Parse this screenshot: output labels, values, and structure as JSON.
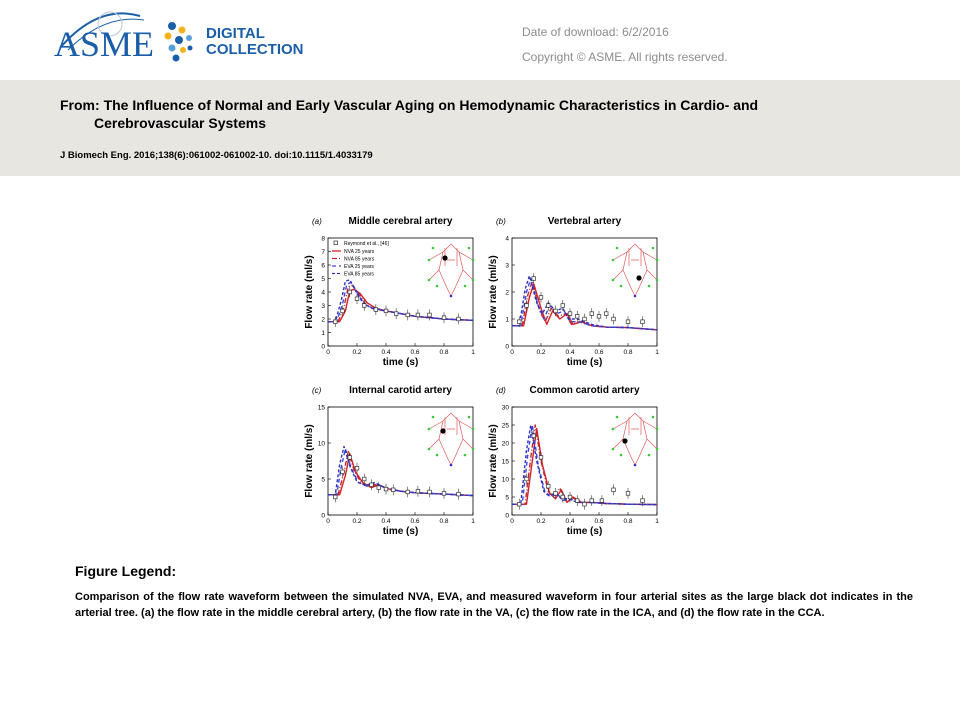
{
  "header": {
    "logo_main": "ASME",
    "logo_line1": "DIGITAL",
    "logo_line2": "COLLECTION",
    "download_label": "Date of download:",
    "download_date": "6/2/2016",
    "copyright": "Copyright © ASME. All rights reserved."
  },
  "article": {
    "from_label": "From:",
    "title_line1": "The Influence of Normal and Early Vascular Aging on Hemodynamic Characteristics in Cardio- and",
    "title_line2": "Cerebrovascular Systems",
    "citation": "J Biomech Eng. 2016;138(6):061002-061002-10. doi:10.1115/1.4033179"
  },
  "legend": {
    "heading": "Figure Legend:",
    "text": "Comparison of the flow rate waveform between the simulated NVA, EVA, and measured waveform in four arterial sites as the large black dot indicates in the arterial tree. (a) the flow rate in the middle cerebral artery, (b) the flow rate in the VA, (c) the flow rate in the ICA, and (d) the flow rate in the CCA."
  },
  "colors": {
    "nva25": "#d61f26",
    "nva85": "#c0282d",
    "eva25": "#3d4ad8",
    "eva85": "#3030c0",
    "band": "#e8e6e1"
  },
  "chart_data": [
    {
      "type": "line",
      "panel": "(a)",
      "title": "Middle cerebral artery",
      "xlabel": "time (s)",
      "ylabel": "Flow rate (ml/s)",
      "xlim": [
        0,
        1
      ],
      "ylim": [
        0,
        8
      ],
      "xticks": [
        "0",
        "0.2",
        "0.4",
        "0.6",
        "0.8",
        "1"
      ],
      "yticks": [
        "0",
        "1",
        "2",
        "3",
        "4",
        "5",
        "6",
        "7",
        "8"
      ],
      "legend": [
        "Reymond et al., [46]",
        "NVA 25 years",
        "NVA 85 years",
        "EVA 25 years",
        "EVA 85 years"
      ],
      "series": [
        {
          "name": "NVA 25 years",
          "x": [
            0,
            0.08,
            0.12,
            0.15,
            0.18,
            0.22,
            0.27,
            0.33,
            0.4,
            0.5,
            0.6,
            0.7,
            0.8,
            0.9,
            1
          ],
          "y": [
            1.8,
            1.8,
            2.6,
            4.1,
            4.2,
            3.9,
            3.2,
            2.8,
            2.6,
            2.4,
            2.2,
            2.1,
            2.0,
            1.95,
            1.9
          ]
        },
        {
          "name": "NVA 85 years",
          "x": [
            0,
            0.07,
            0.11,
            0.14,
            0.17,
            0.21,
            0.26,
            0.32,
            0.4,
            0.5,
            0.6,
            0.7,
            0.8,
            0.9,
            1
          ],
          "y": [
            1.8,
            1.8,
            2.9,
            4.4,
            4.5,
            3.9,
            3.1,
            2.7,
            2.6,
            2.4,
            2.2,
            2.1,
            2.0,
            1.95,
            1.9
          ]
        },
        {
          "name": "EVA 25 years",
          "x": [
            0,
            0.06,
            0.1,
            0.13,
            0.16,
            0.2,
            0.25,
            0.31,
            0.4,
            0.5,
            0.6,
            0.7,
            0.8,
            0.9,
            1
          ],
          "y": [
            1.8,
            1.8,
            3.1,
            4.6,
            4.7,
            4.0,
            3.1,
            2.8,
            2.6,
            2.4,
            2.2,
            2.1,
            2.0,
            1.95,
            1.9
          ]
        },
        {
          "name": "EVA 85 years",
          "x": [
            0,
            0.05,
            0.09,
            0.12,
            0.15,
            0.19,
            0.24,
            0.3,
            0.4,
            0.5,
            0.6,
            0.7,
            0.8,
            0.9,
            1
          ],
          "y": [
            1.8,
            1.8,
            3.3,
            4.8,
            4.9,
            4.1,
            3.2,
            2.8,
            2.6,
            2.4,
            2.2,
            2.1,
            2.0,
            1.95,
            1.9
          ]
        }
      ],
      "measured": {
        "x": [
          0.05,
          0.1,
          0.15,
          0.2,
          0.25,
          0.33,
          0.4,
          0.47,
          0.55,
          0.62,
          0.7,
          0.8,
          0.9
        ],
        "y": [
          1.8,
          2.6,
          4.0,
          3.5,
          3.0,
          2.7,
          2.6,
          2.4,
          2.3,
          2.3,
          2.3,
          2.1,
          2.0
        ]
      }
    },
    {
      "type": "line",
      "panel": "(b)",
      "title": "Vertebral artery",
      "xlabel": "time (s)",
      "ylabel": "Flow rate (ml/s)",
      "xlim": [
        0,
        1
      ],
      "ylim": [
        0,
        4
      ],
      "xticks": [
        "0",
        "0.2",
        "0.4",
        "0.6",
        "0.8",
        "1"
      ],
      "yticks": [
        "0",
        "1",
        "2",
        "3",
        "4"
      ],
      "series": [
        {
          "name": "NVA 25 years",
          "x": [
            0,
            0.08,
            0.12,
            0.15,
            0.2,
            0.24,
            0.28,
            0.33,
            0.38,
            0.42,
            0.48,
            0.55,
            0.65,
            0.8,
            1
          ],
          "y": [
            0.75,
            0.75,
            1.8,
            2.3,
            1.4,
            0.8,
            1.3,
            1.0,
            1.2,
            0.8,
            0.9,
            0.75,
            0.7,
            0.68,
            0.6
          ]
        },
        {
          "name": "NVA 85 years",
          "x": [
            0,
            0.07,
            0.11,
            0.14,
            0.19,
            0.23,
            0.27,
            0.32,
            0.37,
            0.41,
            0.47,
            0.55,
            0.65,
            0.8,
            1
          ],
          "y": [
            0.75,
            0.75,
            1.9,
            2.4,
            1.3,
            0.9,
            1.4,
            1.1,
            1.2,
            0.8,
            0.9,
            0.75,
            0.7,
            0.68,
            0.6
          ]
        },
        {
          "name": "EVA 25 years",
          "x": [
            0,
            0.06,
            0.1,
            0.13,
            0.18,
            0.22,
            0.26,
            0.31,
            0.36,
            0.4,
            0.46,
            0.55,
            0.65,
            0.8,
            1
          ],
          "y": [
            0.75,
            0.75,
            2.0,
            2.5,
            1.5,
            1.0,
            1.5,
            1.2,
            1.3,
            0.9,
            0.9,
            0.75,
            0.7,
            0.68,
            0.6
          ]
        },
        {
          "name": "EVA 85 years",
          "x": [
            0,
            0.05,
            0.09,
            0.12,
            0.17,
            0.21,
            0.25,
            0.3,
            0.35,
            0.39,
            0.45,
            0.55,
            0.65,
            0.8,
            1
          ],
          "y": [
            0.75,
            0.75,
            2.1,
            2.6,
            1.6,
            1.2,
            1.6,
            1.3,
            1.4,
            1.0,
            1.0,
            0.8,
            0.7,
            0.68,
            0.6
          ]
        }
      ],
      "measured": {
        "x": [
          0.05,
          0.1,
          0.15,
          0.2,
          0.25,
          0.3,
          0.35,
          0.4,
          0.45,
          0.5,
          0.55,
          0.6,
          0.65,
          0.7,
          0.8,
          0.9
        ],
        "y": [
          0.9,
          1.5,
          2.5,
          1.8,
          1.5,
          1.3,
          1.5,
          1.2,
          1.1,
          1.0,
          1.2,
          1.1,
          1.2,
          1.0,
          0.9,
          0.9
        ]
      }
    },
    {
      "type": "line",
      "panel": "(c)",
      "title": "Internal carotid artery",
      "xlabel": "time (s)",
      "ylabel": "Flow rate (ml/s)",
      "xlim": [
        0,
        1
      ],
      "ylim": [
        0,
        15
      ],
      "xticks": [
        "0",
        "0.2",
        "0.4",
        "0.6",
        "0.8",
        "1"
      ],
      "yticks": [
        "0",
        "5",
        "10",
        "15"
      ],
      "series": [
        {
          "name": "NVA 25 years",
          "x": [
            0,
            0.08,
            0.12,
            0.15,
            0.19,
            0.24,
            0.3,
            0.35,
            0.42,
            0.5,
            0.6,
            0.7,
            0.8,
            0.9,
            1
          ],
          "y": [
            2.8,
            2.8,
            5.5,
            8.5,
            6.0,
            4.5,
            3.8,
            4.2,
            3.6,
            3.3,
            3.1,
            3.0,
            2.9,
            2.8,
            2.7
          ]
        },
        {
          "name": "NVA 85 years",
          "x": [
            0,
            0.07,
            0.11,
            0.14,
            0.18,
            0.23,
            0.29,
            0.34,
            0.41,
            0.5,
            0.6,
            0.7,
            0.8,
            0.9,
            1
          ],
          "y": [
            2.8,
            2.8,
            6.0,
            8.8,
            6.2,
            4.4,
            3.9,
            4.3,
            3.6,
            3.3,
            3.1,
            3.0,
            2.9,
            2.8,
            2.7
          ]
        },
        {
          "name": "EVA 25 years",
          "x": [
            0,
            0.06,
            0.09,
            0.12,
            0.16,
            0.21,
            0.27,
            0.33,
            0.4,
            0.5,
            0.6,
            0.7,
            0.8,
            0.9,
            1
          ],
          "y": [
            2.8,
            2.8,
            6.5,
            9.2,
            6.5,
            4.5,
            4.0,
            4.4,
            3.7,
            3.3,
            3.1,
            3.0,
            2.9,
            2.8,
            2.7
          ]
        },
        {
          "name": "EVA 85 years",
          "x": [
            0,
            0.05,
            0.08,
            0.11,
            0.15,
            0.2,
            0.26,
            0.32,
            0.39,
            0.5,
            0.6,
            0.7,
            0.8,
            0.9,
            1
          ],
          "y": [
            2.8,
            2.8,
            7.0,
            9.5,
            6.8,
            4.6,
            4.1,
            4.5,
            3.8,
            3.3,
            3.1,
            3.0,
            2.9,
            2.8,
            2.7
          ]
        }
      ],
      "measured": {
        "x": [
          0.05,
          0.1,
          0.15,
          0.2,
          0.25,
          0.3,
          0.35,
          0.4,
          0.45,
          0.55,
          0.62,
          0.7,
          0.8,
          0.9
        ],
        "y": [
          2.5,
          6.0,
          8.0,
          6.5,
          5.0,
          4.2,
          3.8,
          3.6,
          3.5,
          3.2,
          3.3,
          3.2,
          3.0,
          2.9
        ]
      }
    },
    {
      "type": "line",
      "panel": "(d)",
      "title": "Common carotid artery",
      "xlabel": "time (s)",
      "ylabel": "Flow rate (ml/s)",
      "xlim": [
        0,
        1
      ],
      "ylim": [
        0,
        30
      ],
      "xticks": [
        "0",
        "0.2",
        "0.4",
        "0.6",
        "0.8",
        "1"
      ],
      "yticks": [
        "0",
        "5",
        "10",
        "15",
        "20",
        "25",
        "30"
      ],
      "series": [
        {
          "name": "NVA 25 years",
          "x": [
            0,
            0.1,
            0.14,
            0.17,
            0.21,
            0.26,
            0.3,
            0.34,
            0.38,
            0.42,
            0.48,
            0.55,
            0.65,
            0.8,
            1
          ],
          "y": [
            3,
            3,
            15,
            24,
            14,
            6,
            4.5,
            7,
            3.5,
            5,
            3.5,
            3.5,
            3.2,
            3.0,
            2.9
          ]
        },
        {
          "name": "NVA 85 years",
          "x": [
            0,
            0.09,
            0.13,
            0.16,
            0.2,
            0.25,
            0.29,
            0.33,
            0.37,
            0.41,
            0.47,
            0.55,
            0.65,
            0.8,
            1
          ],
          "y": [
            3,
            3,
            16,
            25,
            15,
            6.5,
            5,
            7.5,
            4,
            5,
            3.5,
            3.5,
            3.2,
            3.0,
            2.9
          ]
        },
        {
          "name": "EVA 25 years",
          "x": [
            0,
            0.07,
            0.11,
            0.14,
            0.18,
            0.23,
            0.27,
            0.31,
            0.35,
            0.4,
            0.46,
            0.55,
            0.65,
            0.8,
            1
          ],
          "y": [
            3,
            3,
            17,
            25,
            14,
            6,
            5,
            6,
            4,
            4.5,
            3.5,
            3.5,
            3.2,
            3.0,
            2.9
          ]
        },
        {
          "name": "EVA 85 years",
          "x": [
            0,
            0.06,
            0.1,
            0.13,
            0.17,
            0.22,
            0.26,
            0.3,
            0.34,
            0.39,
            0.45,
            0.55,
            0.65,
            0.8,
            1
          ],
          "y": [
            3,
            3,
            18,
            25,
            15,
            6.5,
            5.5,
            6,
            4.5,
            4.5,
            3.5,
            3.5,
            3.2,
            3.0,
            2.9
          ]
        }
      ],
      "measured": {
        "x": [
          0.05,
          0.1,
          0.15,
          0.2,
          0.25,
          0.3,
          0.35,
          0.4,
          0.45,
          0.5,
          0.55,
          0.62,
          0.7,
          0.8,
          0.9
        ],
        "y": [
          3,
          10,
          22,
          16,
          8,
          6,
          5,
          5,
          4,
          3,
          4,
          4,
          7,
          6,
          4
        ]
      }
    }
  ]
}
